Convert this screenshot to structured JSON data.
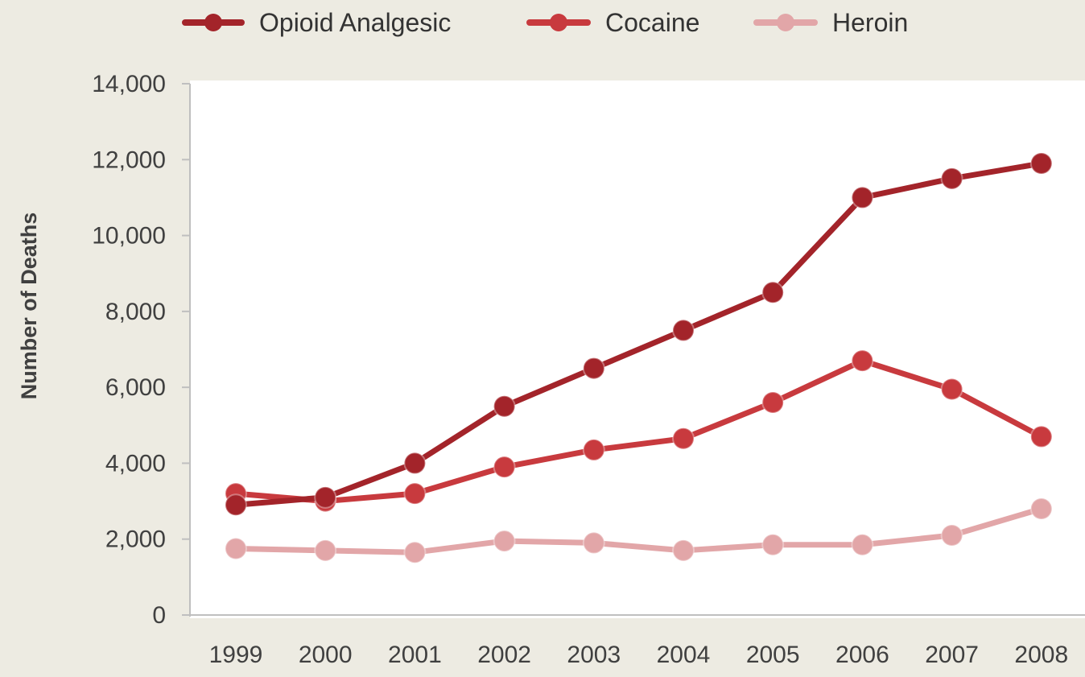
{
  "chart_data": {
    "type": "line",
    "title": "",
    "xlabel": "",
    "ylabel": "Number of Deaths",
    "categories": [
      "1999",
      "2000",
      "2001",
      "2002",
      "2003",
      "2004",
      "2005",
      "2006",
      "2007",
      "2008"
    ],
    "ylim": [
      0,
      14000
    ],
    "yticks": [
      0,
      2000,
      4000,
      6000,
      8000,
      10000,
      12000,
      14000
    ],
    "ytick_labels": [
      "0",
      "2,000",
      "4,000",
      "6,000",
      "8,000",
      "10,000",
      "12,000",
      "14,000"
    ],
    "grid": false,
    "legend_position": "top",
    "series": [
      {
        "name": "Opioid Analgesic",
        "color": "#A3242A",
        "values": [
          2900,
          3100,
          4000,
          5500,
          6500,
          7500,
          8500,
          11000,
          11500,
          11900
        ]
      },
      {
        "name": "Cocaine",
        "color": "#C83A3E",
        "values": [
          3200,
          3000,
          3200,
          3900,
          4350,
          4650,
          5600,
          6700,
          5950,
          4700
        ]
      },
      {
        "name": "Heroin",
        "color": "#E2A6A8",
        "values": [
          1750,
          1700,
          1650,
          1950,
          1900,
          1700,
          1850,
          1850,
          2100,
          2800
        ]
      }
    ]
  }
}
